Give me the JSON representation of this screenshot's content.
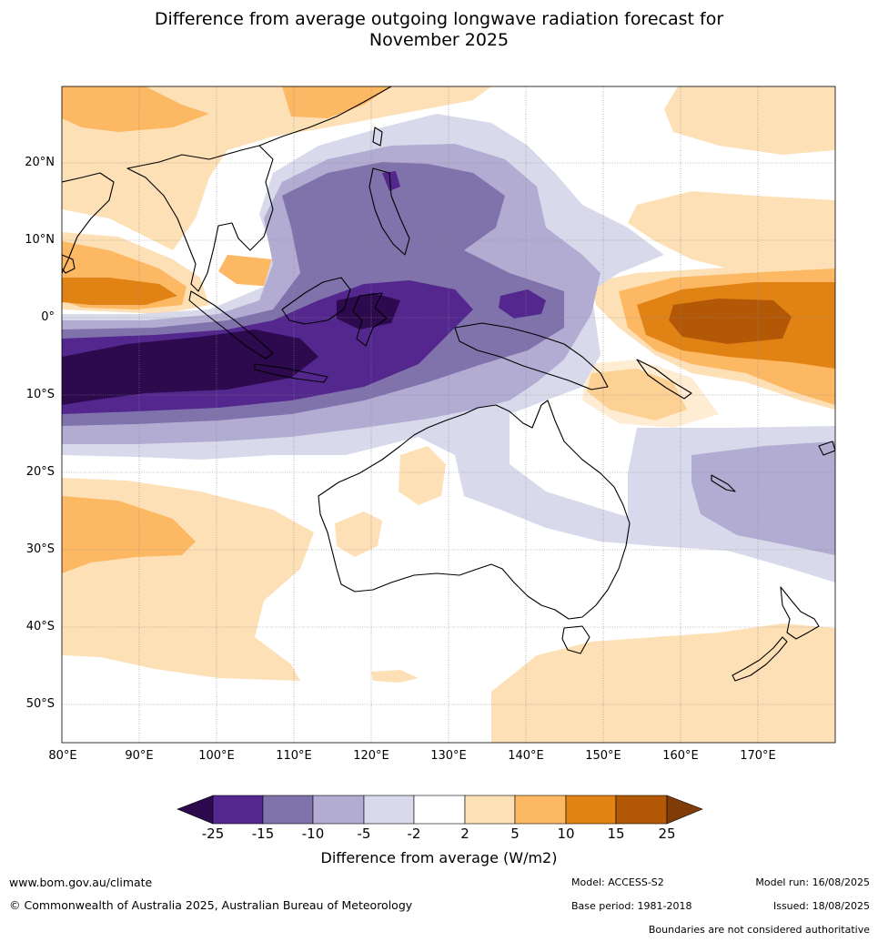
{
  "title_line1": "Difference from average outgoing longwave radiation forecast for",
  "title_line2": "November 2025",
  "lat_labels": [
    "20°N",
    "10°N",
    "0°",
    "10°S",
    "20°S",
    "30°S",
    "40°S",
    "50°S"
  ],
  "lon_labels": [
    "80°E",
    "90°E",
    "100°E",
    "110°E",
    "120°E",
    "130°E",
    "140°E",
    "150°E",
    "160°E",
    "170°E"
  ],
  "colorbar": {
    "title": "Difference from average (W/m2)",
    "tick_labels": [
      "-25",
      "-15",
      "-10",
      "-5",
      "-2",
      "2",
      "5",
      "10",
      "15",
      "25"
    ],
    "colors": [
      "#2d0a4e",
      "#54278f",
      "#8073ac",
      "#b2abd2",
      "#d8daeb",
      "#ffffff",
      "#fee0b6",
      "#fdb863",
      "#e08214",
      "#b35806",
      "#7f3b08"
    ]
  },
  "footer": {
    "website": "www.bom.gov.au/climate",
    "copyright": "© Commonwealth of Australia 2025, Australian Bureau of Meteorology",
    "model": "Model: ACCESS-S2",
    "base_period": "Base period: 1981-2018",
    "model_run": "Model run: 16/08/2025",
    "issued": "Issued: 18/08/2025",
    "disclaimer": "Boundaries are not considered authoritative"
  }
}
